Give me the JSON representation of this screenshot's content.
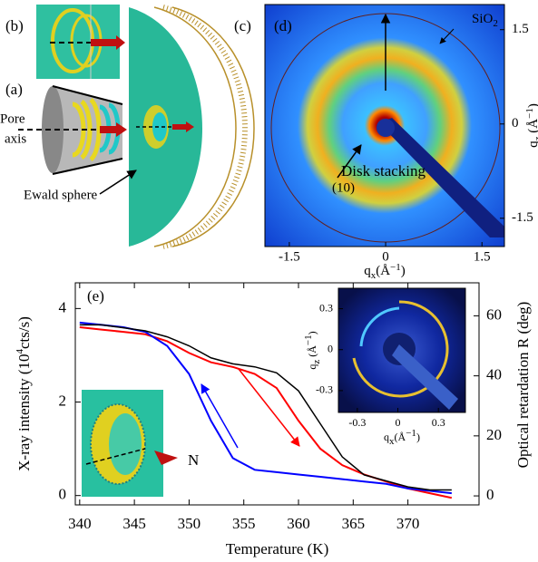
{
  "chart_data": [
    {
      "type": "line",
      "xlabel": "Temperature (K)",
      "ylabel": [
        "X-ray intensity (10",
        "4",
        "cts/s)"
      ],
      "y2label": "Optical retardation R (deg)",
      "annotations": [
        "(e)",
        "N"
      ],
      "x": [
        340,
        342,
        344,
        346,
        348,
        350,
        352,
        354,
        356,
        358,
        360,
        362,
        364,
        366,
        368,
        370,
        372,
        374
      ],
      "series": [
        {
          "color": "#ff0000",
          "values": [
            3.6,
            3.55,
            3.5,
            3.45,
            3.3,
            3.05,
            2.85,
            2.75,
            2.6,
            2.3,
            1.6,
            1.0,
            0.65,
            0.45,
            0.3,
            0.15,
            0.05,
            -0.05
          ]
        },
        {
          "color": "#0000ff",
          "values": [
            3.7,
            3.65,
            3.6,
            3.5,
            3.2,
            2.6,
            1.6,
            0.8,
            0.55,
            0.5,
            0.45,
            0.4,
            0.35,
            0.3,
            0.25,
            0.15,
            0.1,
            0.05
          ]
        },
        {
          "color": "#000000",
          "axis": "y2",
          "values": [
            57,
            57,
            56,
            55,
            53,
            50,
            46,
            44,
            43,
            41,
            35,
            24,
            13,
            7,
            5,
            3,
            2,
            2
          ]
        }
      ],
      "xlim": [
        339.6,
        376.5
      ],
      "xticks": [
        340,
        345,
        350,
        355,
        360,
        365,
        370
      ],
      "ylim": [
        -0.2,
        4.55
      ],
      "yticks": [
        0,
        2,
        4
      ],
      "y2lim": [
        -3,
        71
      ],
      "y2ticks": [
        0,
        20,
        40,
        60
      ]
    },
    {
      "type": "image",
      "xlabel": [
        "q",
        "x",
        "(Å",
        "−1",
        ")"
      ],
      "ylabel": [
        "q",
        "z",
        " (Å",
        "−1",
        ")"
      ],
      "annotations": [
        "(d)",
        "Disk stacking",
        [
          "SiO",
          "2"
        ],
        "(10)"
      ],
      "xlim": [
        -1.88,
        1.85
      ],
      "xticks": [
        -1.5,
        0,
        1.5
      ],
      "ylim": [
        -1.95,
        1.9
      ],
      "yticks": [
        -1.5,
        0,
        1.5
      ]
    },
    {
      "type": "image",
      "xlabel": [
        "q",
        "x",
        "(Å",
        "−1",
        ")"
      ],
      "ylabel": [
        "q",
        "z",
        " (Å",
        "−1",
        ")"
      ],
      "xlim": [
        -0.44,
        0.5
      ],
      "xticks": [
        -0.3,
        0,
        0.3
      ],
      "ylim": [
        -0.46,
        0.45
      ],
      "yticks": [
        -0.3,
        0,
        0.3
      ]
    }
  ],
  "panels": {
    "labels": [
      "(b)",
      "(a)",
      "(c)"
    ],
    "pore_axis": [
      "Pore",
      "axis"
    ],
    "ewald": "Ewald sphere"
  }
}
